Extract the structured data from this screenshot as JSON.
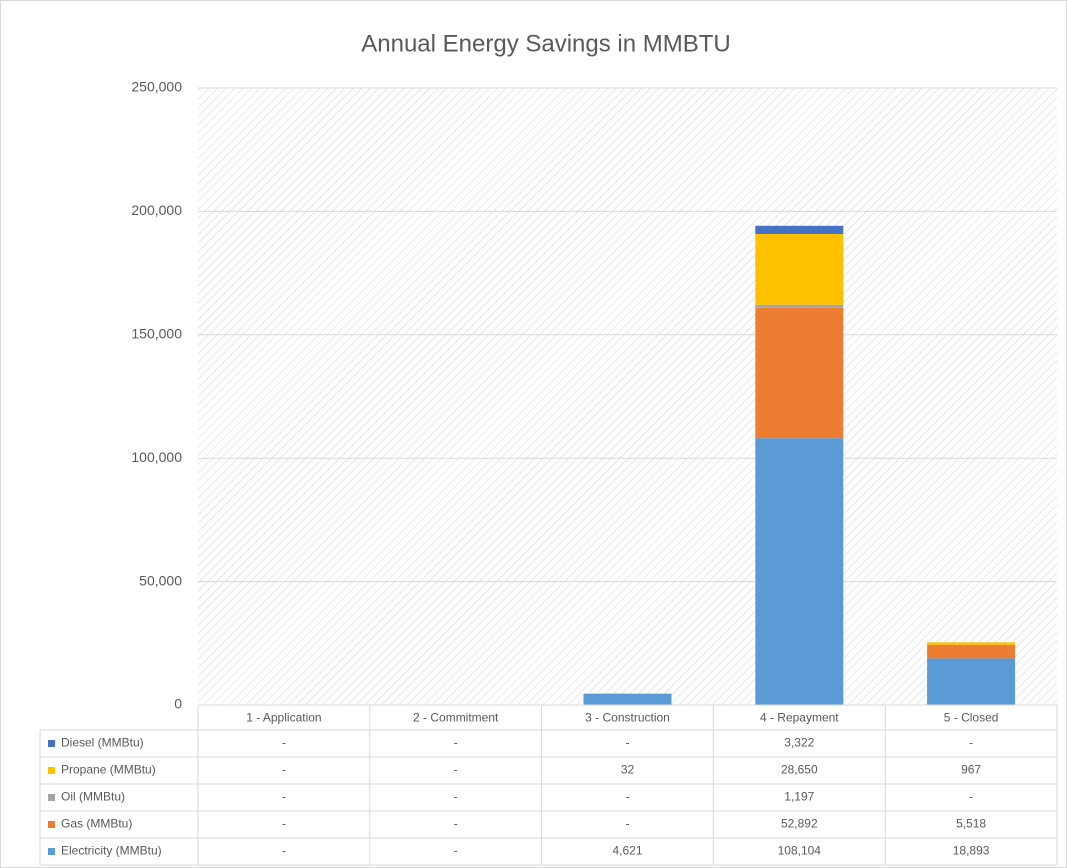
{
  "chart_data": {
    "type": "bar",
    "stacked": true,
    "title": "Annual Energy Savings in MMBTU",
    "categories": [
      "1 - Application",
      "2 - Commitment",
      "3 - Construction",
      "4 - Repayment",
      "5 - Closed"
    ],
    "series": [
      {
        "name": "Electricity (MMBtu)",
        "color": "#5b9bd5",
        "values": [
          0,
          0,
          4621,
          108104,
          18893
        ],
        "value_labels": [
          "-",
          "-",
          "4,621",
          "108,104",
          "18,893"
        ]
      },
      {
        "name": "Gas (MMBtu)",
        "color": "#ed7d31",
        "values": [
          0,
          0,
          0,
          52892,
          5518
        ],
        "value_labels": [
          "-",
          "-",
          "-",
          "52,892",
          "5,518"
        ]
      },
      {
        "name": "Oil (MMBtu)",
        "color": "#a5a5a5",
        "values": [
          0,
          0,
          0,
          1197,
          0
        ],
        "value_labels": [
          "-",
          "-",
          "-",
          "1,197",
          "-"
        ]
      },
      {
        "name": "Propane (MMBtu)",
        "color": "#ffc000",
        "values": [
          0,
          0,
          32,
          28650,
          967
        ],
        "value_labels": [
          "-",
          "-",
          "32",
          "28,650",
          "967"
        ]
      },
      {
        "name": "Diesel (MMBtu)",
        "color": "#4472c4",
        "values": [
          0,
          0,
          0,
          3322,
          0
        ],
        "value_labels": [
          "-",
          "-",
          "-",
          "3,322",
          "-"
        ]
      }
    ],
    "ylim": [
      0,
      250000
    ],
    "yticks": [
      0,
      {
        "value": 50000,
        "label": "50,000"
      },
      {
        "value": 100000,
        "label": "100,000"
      },
      {
        "value": 150000,
        "label": "150,000"
      },
      {
        "value": 200000,
        "label": "200,000"
      },
      {
        "value": 250000,
        "label": "250,000"
      }
    ],
    "grid": true
  }
}
